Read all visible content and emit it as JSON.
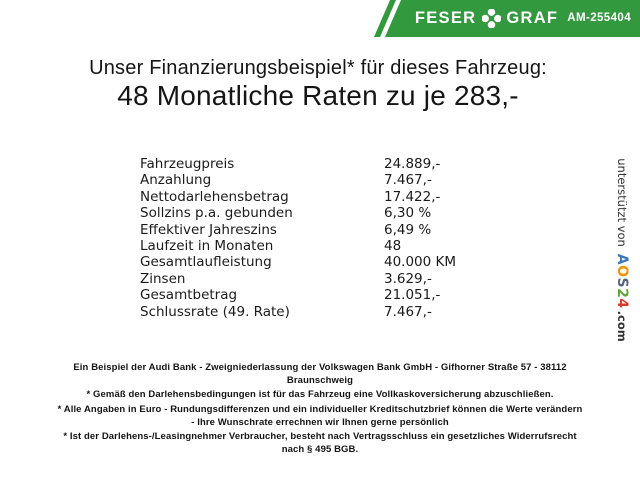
{
  "banner": {
    "brand_left": "FESER",
    "brand_right": "GRAF",
    "badge": "AM-255404",
    "bg_color": "#33993f",
    "text_color": "#ffffff"
  },
  "title": {
    "line1": "Unser Finanzierungsbeispiel* für dieses Fahrzeug:",
    "line2": "48 Monatliche Raten zu je 283,-"
  },
  "financing_table": {
    "rows": [
      {
        "label": "Fahrzeugpreis",
        "value": "24.889,-"
      },
      {
        "label": "Anzahlung",
        "value": "7.467,-"
      },
      {
        "label": "Nettodarlehensbetrag",
        "value": "17.422,-"
      },
      {
        "label": "Sollzins p.a. gebunden",
        "value": "6,30 %"
      },
      {
        "label": "Effektiver Jahreszins",
        "value": "6,49 %"
      },
      {
        "label": "Laufzeit in Monaten",
        "value": "48"
      },
      {
        "label": "Gesamtlaufleistung",
        "value": "40.000 KM"
      },
      {
        "label": "Zinsen",
        "value": "3.629,-"
      },
      {
        "label": "Gesamtbetrag",
        "value": "21.051,-"
      },
      {
        "label": "Schlussrate (49. Rate)",
        "value": "7.467,-"
      }
    ]
  },
  "support": {
    "prefix": "unterstützt von",
    "logo_letters": [
      {
        "ch": "A",
        "color": "#3b76bc"
      },
      {
        "ch": "O",
        "color": "#f39200"
      },
      {
        "ch": "S",
        "color": "#54657d"
      },
      {
        "ch": "2",
        "color": "#5da731"
      },
      {
        "ch": "4",
        "color": "#d93a2b"
      }
    ],
    "suffix": ".com"
  },
  "footer": {
    "lines": [
      "Ein Beispiel der Audi Bank - Zweigniederlassung der Volkswagen Bank GmbH - Gifhorner Straße 57 - 38112",
      "Braunschweig",
      "* Gemäß den Darlehensbedingungen ist für das Fahrzeug eine Vollkaskoversicherung abzuschließen.",
      "* Alle Angaben in Euro - Rundungsdifferenzen und ein individueller Kreditschutzbrief können die Werte verändern",
      "- Ihre Wunschrate errechnen wir Ihnen gerne persönlich",
      "* Ist der Darlehens-/Leasingnehmer Verbraucher, besteht nach Vertragsschluss ein gesetzliches Widerrufsrecht",
      "nach § 495 BGB."
    ]
  }
}
